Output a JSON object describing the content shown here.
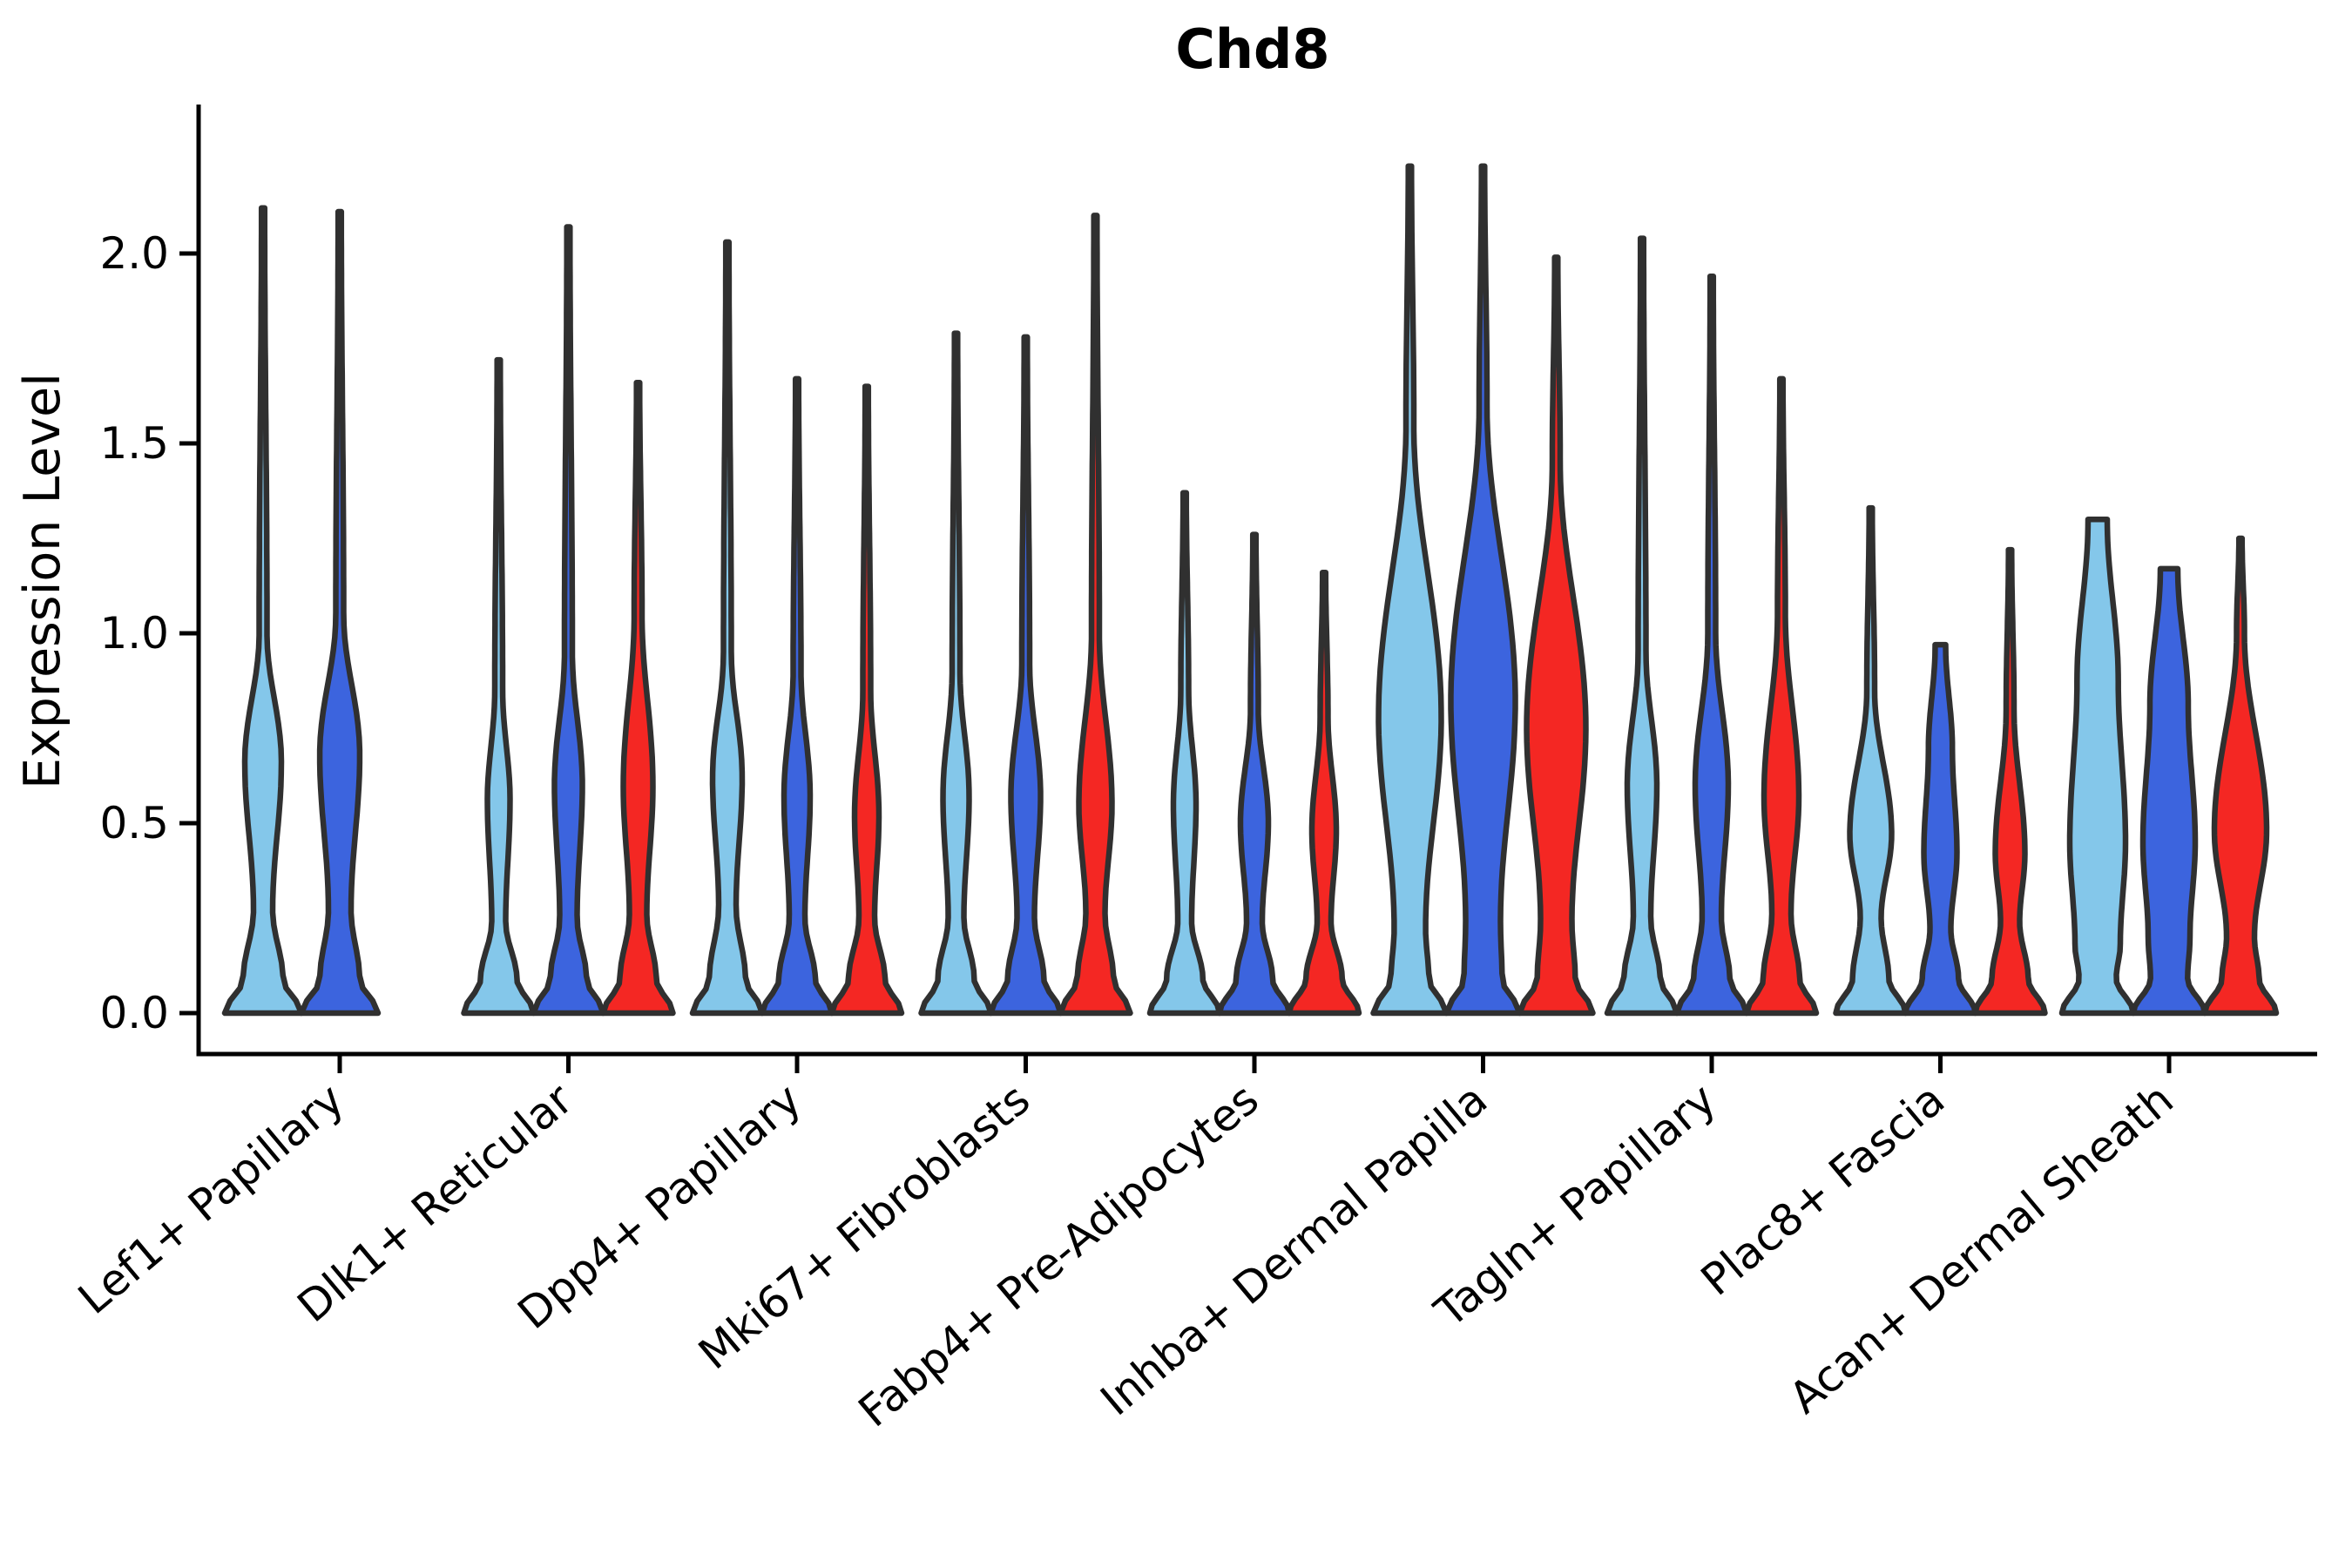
{
  "chart_data": {
    "type": "violin",
    "title": "Chd8",
    "ylabel": "Expression Level",
    "xlabel": "",
    "ylim": [
      0.0,
      2.39
    ],
    "grid": false,
    "legend": "none",
    "yticks": [
      {
        "label": "0.0",
        "value": 0.0
      },
      {
        "label": "0.5",
        "value": 0.5
      },
      {
        "label": "1.0",
        "value": 1.0
      },
      {
        "label": "1.5",
        "value": 1.5
      },
      {
        "label": "2.0",
        "value": 2.0
      }
    ],
    "categories": [
      "Lef1+ Papillary",
      "Dlk1+ Reticular",
      "Dpp4+ Papillary",
      "Mki67+ Fibroblasts",
      "Fabp4+ Pre-Adipocytes",
      "Inhba+ Dermal Papilla",
      "Tagln+ Papillary",
      "Plac8+ Fascia",
      "Acan+ Dermal Sheath"
    ],
    "hues": [
      {
        "id": "hue-light-blue",
        "color": "#84C7EA"
      },
      {
        "id": "hue-dark-blue",
        "color": "#3C64DE"
      },
      {
        "id": "hue-red",
        "color": "#F42723"
      }
    ],
    "outline_color": "#303030",
    "violins": [
      {
        "cat": 0,
        "hue": 0,
        "max": 2.12,
        "base": 44,
        "waist": [
          0.27,
          11
        ],
        "bulge": [
          0.66,
          21
        ],
        "spike": 1.0,
        "tip": null
      },
      {
        "cat": 0,
        "hue": 1,
        "max": 2.11,
        "base": 44,
        "waist": [
          0.27,
          13
        ],
        "bulge": [
          0.68,
          23
        ],
        "spike": 1.05,
        "tip": null
      },
      {
        "cat": 1,
        "hue": 0,
        "max": 1.72,
        "base": 40,
        "waist": [
          0.24,
          8
        ],
        "bulge": [
          0.56,
          13
        ],
        "spike": 0.85,
        "tip": null
      },
      {
        "cat": 1,
        "hue": 1,
        "max": 2.07,
        "base": 40,
        "waist": [
          0.25,
          10
        ],
        "bulge": [
          0.6,
          16
        ],
        "spike": 0.95,
        "tip": null
      },
      {
        "cat": 1,
        "hue": 2,
        "max": 1.66,
        "base": 40,
        "waist": [
          0.26,
          10
        ],
        "bulge": [
          0.6,
          17
        ],
        "spike": 1.05,
        "tip": null
      },
      {
        "cat": 2,
        "hue": 0,
        "max": 2.03,
        "base": 40,
        "waist": [
          0.28,
          10
        ],
        "bulge": [
          0.62,
          17
        ],
        "spike": 0.95,
        "tip": null
      },
      {
        "cat": 2,
        "hue": 1,
        "max": 1.67,
        "base": 40,
        "waist": [
          0.25,
          9
        ],
        "bulge": [
          0.57,
          15
        ],
        "spike": 0.9,
        "tip": null
      },
      {
        "cat": 2,
        "hue": 2,
        "max": 1.65,
        "base": 40,
        "waist": [
          0.25,
          9
        ],
        "bulge": [
          0.52,
          14
        ],
        "spike": 0.85,
        "tip": null
      },
      {
        "cat": 3,
        "hue": 0,
        "max": 1.79,
        "base": 40,
        "waist": [
          0.25,
          9
        ],
        "bulge": [
          0.57,
          15
        ],
        "spike": 0.9,
        "tip": null
      },
      {
        "cat": 3,
        "hue": 1,
        "max": 1.78,
        "base": 40,
        "waist": [
          0.25,
          10
        ],
        "bulge": [
          0.57,
          17
        ],
        "spike": 0.92,
        "tip": null
      },
      {
        "cat": 3,
        "hue": 2,
        "max": 2.1,
        "base": 40,
        "waist": [
          0.26,
          11
        ],
        "bulge": [
          0.55,
          19
        ],
        "spike": 1.0,
        "tip": null
      },
      {
        "cat": 4,
        "hue": 0,
        "max": 1.37,
        "base": 40,
        "waist": [
          0.24,
          8
        ],
        "bulge": [
          0.55,
          13
        ],
        "spike": 0.85,
        "tip": null
      },
      {
        "cat": 4,
        "hue": 1,
        "max": 1.26,
        "base": 40,
        "waist": [
          0.24,
          9
        ],
        "bulge": [
          0.5,
          16
        ],
        "spike": 0.8,
        "tip": null
      },
      {
        "cat": 4,
        "hue": 2,
        "max": 1.16,
        "base": 40,
        "waist": [
          0.24,
          8
        ],
        "bulge": [
          0.48,
          14
        ],
        "spike": 0.78,
        "tip": null
      },
      {
        "cat": 5,
        "hue": 0,
        "max": 2.23,
        "base": 42,
        "waist": [
          0.22,
          18
        ],
        "bulge": [
          0.78,
          36
        ],
        "spike": 1.55,
        "tip": null
      },
      {
        "cat": 5,
        "hue": 1,
        "max": 2.23,
        "base": 42,
        "waist": [
          0.24,
          20
        ],
        "bulge": [
          0.82,
          37
        ],
        "spike": 1.6,
        "tip": null
      },
      {
        "cat": 5,
        "hue": 2,
        "max": 1.99,
        "base": 42,
        "waist": [
          0.24,
          18
        ],
        "bulge": [
          0.75,
          34
        ],
        "spike": 1.45,
        "tip": null
      },
      {
        "cat": 6,
        "hue": 0,
        "max": 2.04,
        "base": 40,
        "waist": [
          0.25,
          10
        ],
        "bulge": [
          0.6,
          17
        ],
        "spike": 0.95,
        "tip": null
      },
      {
        "cat": 6,
        "hue": 1,
        "max": 1.94,
        "base": 40,
        "waist": [
          0.25,
          11
        ],
        "bulge": [
          0.6,
          19
        ],
        "spike": 1.0,
        "tip": null
      },
      {
        "cat": 6,
        "hue": 2,
        "max": 1.67,
        "base": 40,
        "waist": [
          0.26,
          11
        ],
        "bulge": [
          0.57,
          20
        ],
        "spike": 1.05,
        "tip": null
      },
      {
        "cat": 7,
        "hue": 0,
        "max": 1.33,
        "base": 40,
        "waist": [
          0.25,
          12
        ],
        "bulge": [
          0.47,
          24
        ],
        "spike": 0.85,
        "tip": null
      },
      {
        "cat": 7,
        "hue": 1,
        "max": 0.97,
        "base": 40,
        "waist": [
          0.22,
          12
        ],
        "bulge": [
          0.42,
          19
        ],
        "spike": null,
        "tip": 6
      },
      {
        "cat": 7,
        "hue": 2,
        "max": 1.22,
        "base": 40,
        "waist": [
          0.24,
          11
        ],
        "bulge": [
          0.42,
          17
        ],
        "spike": 0.8,
        "tip": null
      },
      {
        "cat": 8,
        "hue": 0,
        "max": 1.3,
        "base": 41,
        "waist": [
          0.18,
          26
        ],
        "bulge": [
          0.45,
          32
        ],
        "spike": null,
        "tip": 11
      },
      {
        "cat": 8,
        "hue": 1,
        "max": 1.17,
        "base": 41,
        "waist": [
          0.2,
          24
        ],
        "bulge": [
          0.45,
          30
        ],
        "spike": null,
        "tip": 10
      },
      {
        "cat": 8,
        "hue": 2,
        "max": 1.25,
        "base": 41,
        "waist": [
          0.2,
          16
        ],
        "bulge": [
          0.48,
          30
        ],
        "spike": 1.0,
        "tip": null
      }
    ]
  }
}
